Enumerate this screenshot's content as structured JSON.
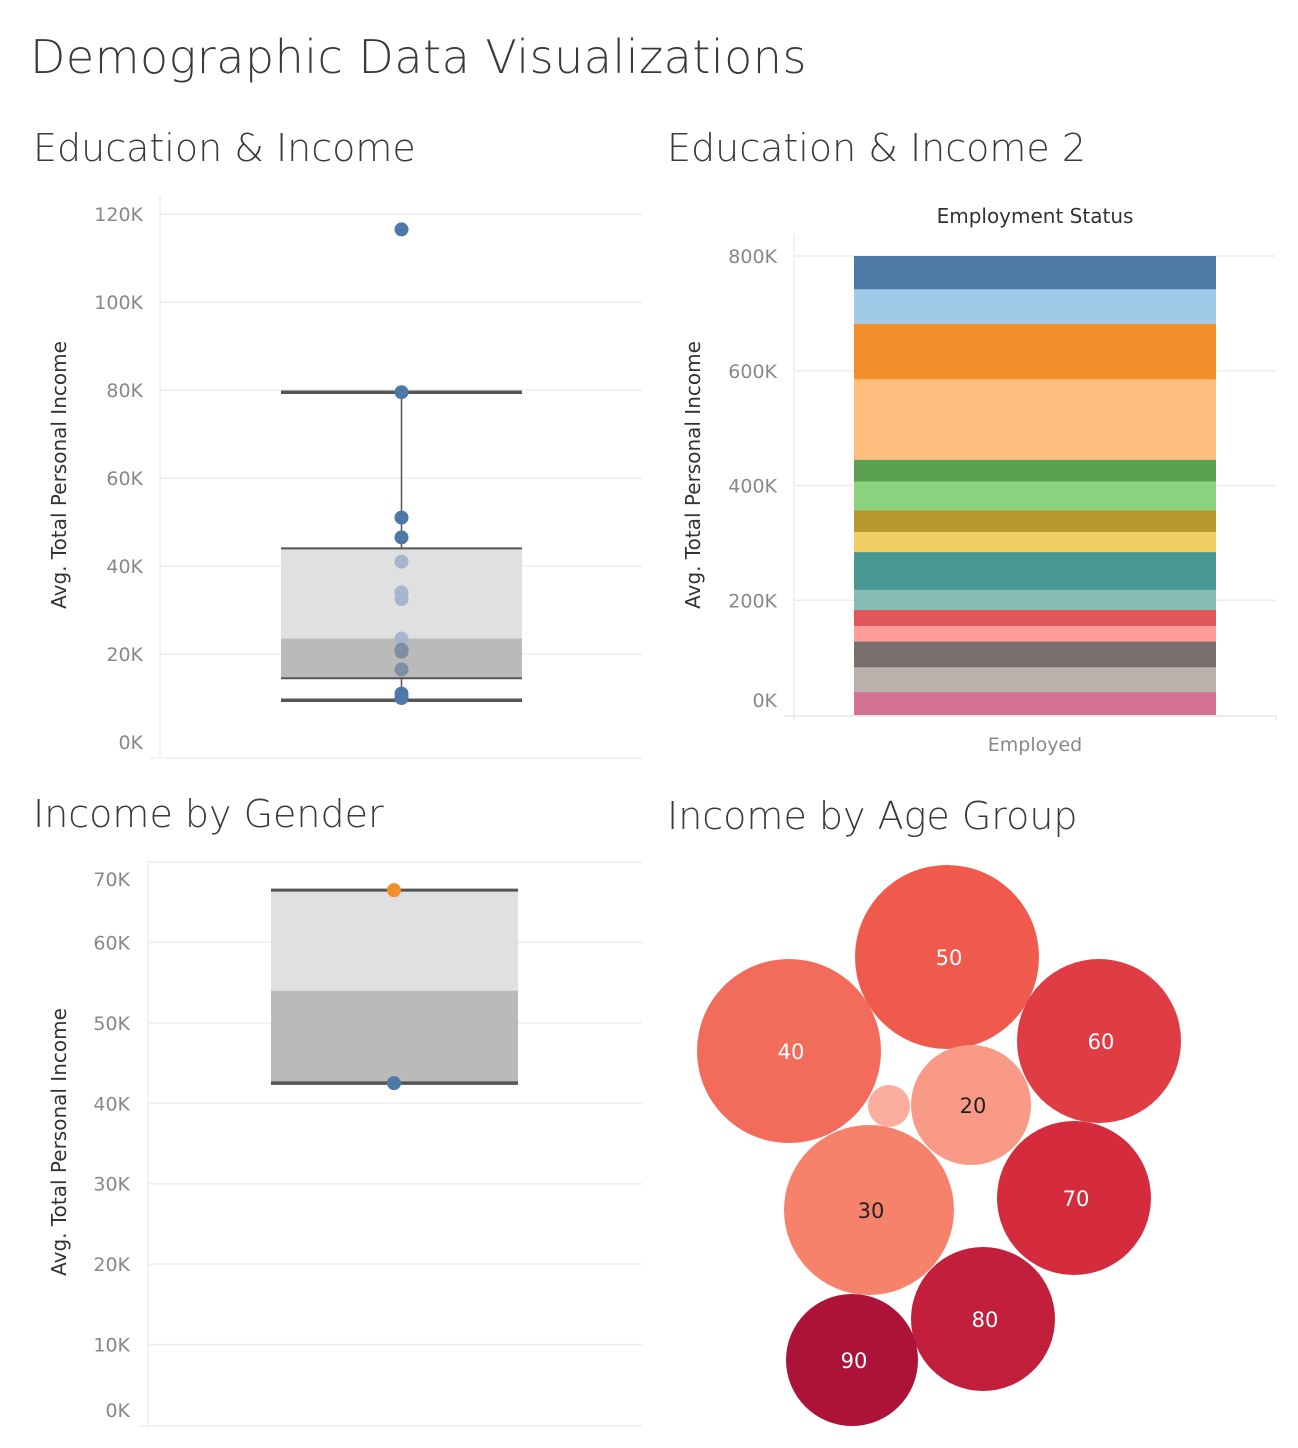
{
  "title": "Demographic Data Visualizations",
  "chart_data": [
    {
      "type": "boxplot",
      "title": "Education & Income",
      "ylabel": "Avg. Total Personal Income",
      "ylim": [
        0,
        120000
      ],
      "y_ticks": [
        "0K",
        "20K",
        "40K",
        "60K",
        "80K",
        "100K",
        "120K"
      ],
      "box": {
        "lower_whisker": 9500,
        "q1": 14500,
        "median": 23500,
        "q3": 44000,
        "upper_whisker": 79500
      },
      "points": [
        {
          "value": 116500,
          "tone": "dark"
        },
        {
          "value": 79500,
          "tone": "dark"
        },
        {
          "value": 51000,
          "tone": "dark"
        },
        {
          "value": 46500,
          "tone": "dark"
        },
        {
          "value": 41000,
          "tone": "light"
        },
        {
          "value": 34000,
          "tone": "light"
        },
        {
          "value": 32500,
          "tone": "light"
        },
        {
          "value": 23500,
          "tone": "light"
        },
        {
          "value": 21000,
          "tone": "mid"
        },
        {
          "value": 20500,
          "tone": "mid"
        },
        {
          "value": 16500,
          "tone": "mid"
        },
        {
          "value": 11000,
          "tone": "dark"
        },
        {
          "value": 10000,
          "tone": "dark"
        }
      ],
      "colors": {
        "dark": "#4e79a7",
        "mid": "#7f8ea3",
        "light": "#a6b6cc",
        "box_upper": "#e0e0e0",
        "box_lower": "#bababa",
        "whisker": "#555555"
      }
    },
    {
      "type": "stacked_bar",
      "title": "Education & Income 2",
      "header": "Employment Status",
      "ylabel": "Avg. Total Personal Income",
      "category": "Employed",
      "ylim": [
        0,
        800000
      ],
      "y_ticks": [
        "0K",
        "200K",
        "400K",
        "600K",
        "800K"
      ],
      "segments": [
        {
          "value": 40000,
          "color": "#d37295"
        },
        {
          "value": 43000,
          "color": "#bab0ac"
        },
        {
          "value": 45000,
          "color": "#79706e"
        },
        {
          "value": 27000,
          "color": "#ff9d9a"
        },
        {
          "value": 28000,
          "color": "#e15759"
        },
        {
          "value": 35000,
          "color": "#86bcb6"
        },
        {
          "value": 66000,
          "color": "#499894"
        },
        {
          "value": 35000,
          "color": "#f1ce63"
        },
        {
          "value": 38000,
          "color": "#b6992d"
        },
        {
          "value": 50000,
          "color": "#8cd17d"
        },
        {
          "value": 38000,
          "color": "#59a14f"
        },
        {
          "value": 140000,
          "color": "#ffbe7d"
        },
        {
          "value": 97000,
          "color": "#f28e2b"
        },
        {
          "value": 60000,
          "color": "#a0cbe8"
        },
        {
          "value": 58000,
          "color": "#4e79a7"
        }
      ]
    },
    {
      "type": "boxplot",
      "title": "Income by Gender",
      "ylabel": "Avg. Total Personal Income",
      "ylim": [
        0,
        70000
      ],
      "y_ticks": [
        "0K",
        "10K",
        "20K",
        "30K",
        "40K",
        "50K",
        "60K",
        "70K"
      ],
      "box": {
        "lower_whisker": 42500,
        "q1": 42500,
        "median": 54000,
        "q3": 66500,
        "upper_whisker": 66500
      },
      "points": [
        {
          "value": 66500,
          "color": "#f28e2b"
        },
        {
          "value": 42500,
          "color": "#4e79a7"
        }
      ],
      "colors": {
        "box_upper": "#e0e0e0",
        "box_lower": "#bababa",
        "whisker": "#555555"
      }
    },
    {
      "type": "packed_bubble",
      "title": "Income by Age Group",
      "bubbles": [
        {
          "label": "50",
          "value": 50,
          "color": "#ef5a4c",
          "text_color": "#ffffff"
        },
        {
          "label": "40",
          "value": 40,
          "color": "#f26b5b",
          "text_color": "#ffffff"
        },
        {
          "label": "60",
          "value": 60,
          "color": "#e03c44",
          "text_color": "#ffffff"
        },
        {
          "label": "20",
          "value": 20,
          "color": "#f89a85",
          "text_color": "#222222"
        },
        {
          "label": "",
          "value": 10,
          "color": "#fbae9d",
          "text_color": "#222222"
        },
        {
          "label": "30",
          "value": 30,
          "color": "#f7826c",
          "text_color": "#222222"
        },
        {
          "label": "70",
          "value": 70,
          "color": "#d42c3c",
          "text_color": "#ffffff"
        },
        {
          "label": "80",
          "value": 80,
          "color": "#c21f3c",
          "text_color": "#ffffff"
        },
        {
          "label": "90",
          "value": 90,
          "color": "#ad1338",
          "text_color": "#ffffff"
        }
      ]
    }
  ]
}
